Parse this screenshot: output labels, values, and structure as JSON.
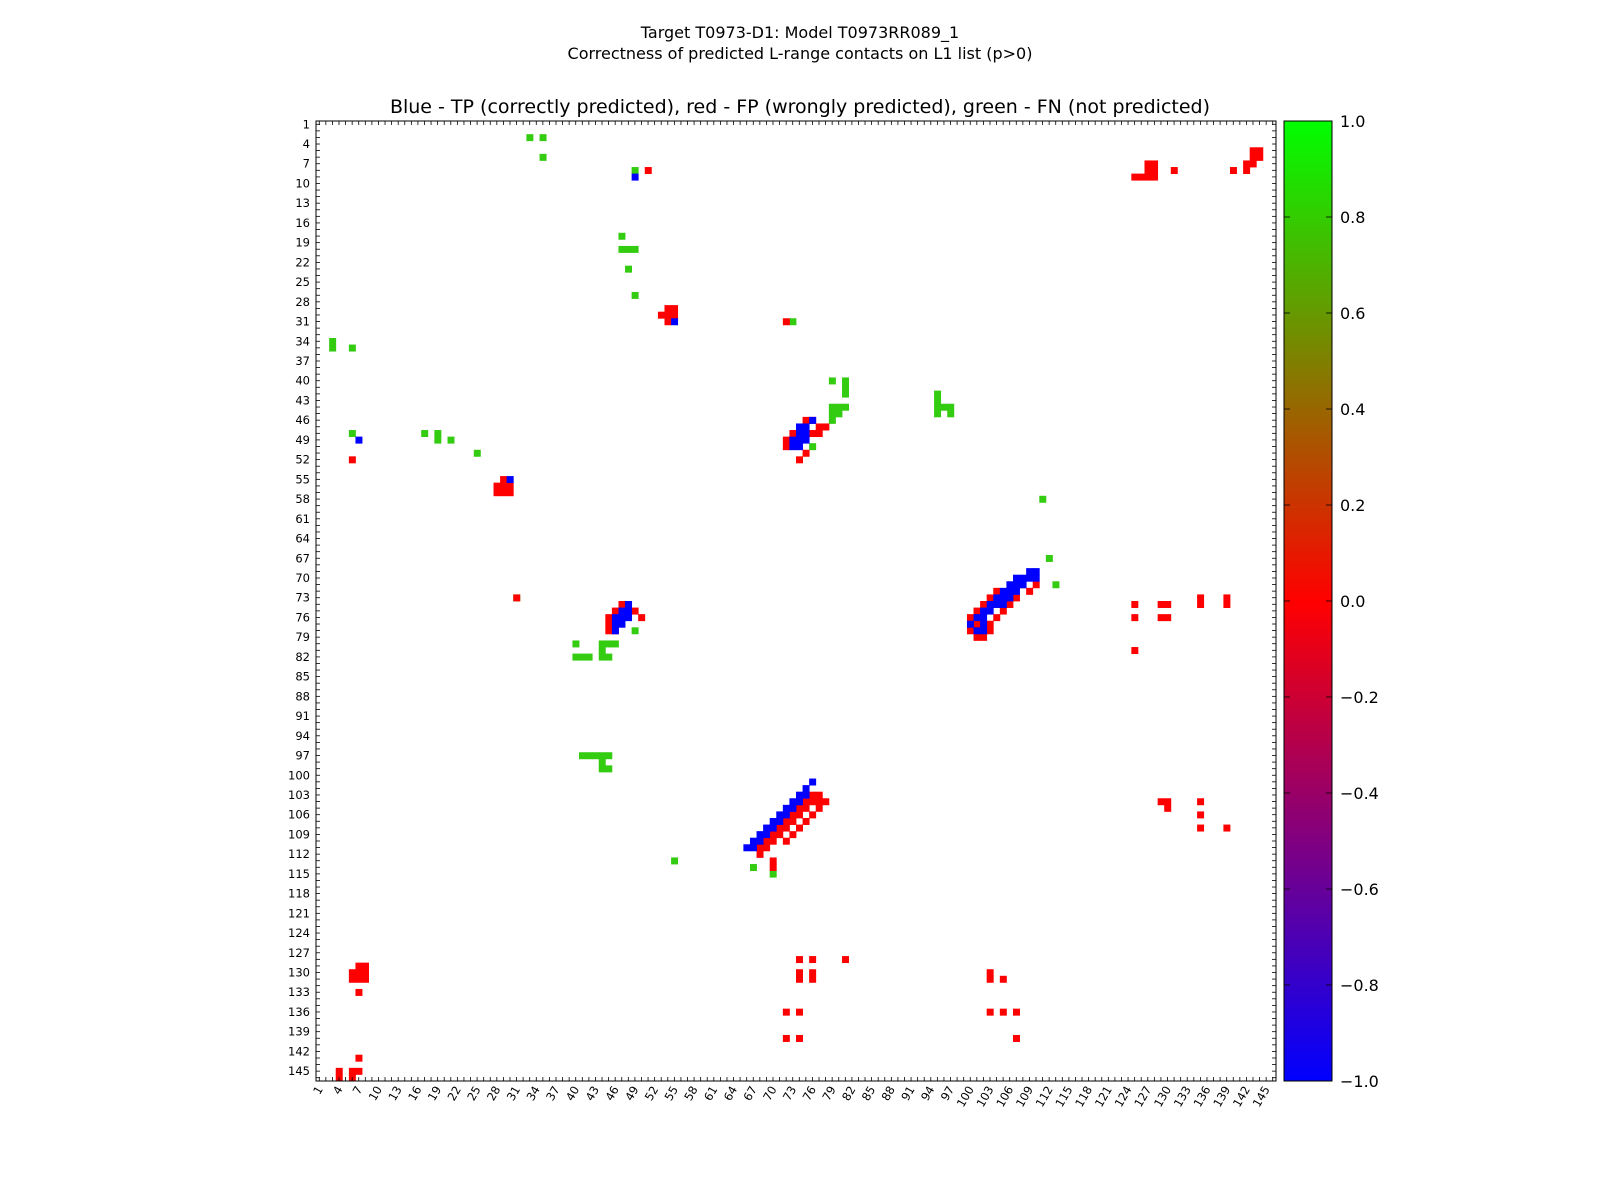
{
  "colors": {
    "tp": "#0000ff",
    "fp": "#ff0000",
    "fn": "#33cc11",
    "frame": "#000000",
    "background": "#ffffff"
  },
  "chart_data": {
    "type": "heatmap",
    "suptitle_line1": "Target T0973-D1: Model T0973RR089_1",
    "suptitle_line2": "Correctness of predicted L-range contacts on L1 list (p>0)",
    "title": "Blue - TP (correctly predicted), red - FP (wrongly predicted), green - FN (not predicted)",
    "residue_range": [
      1,
      146
    ],
    "tick_labels": [
      "1",
      "4",
      "7",
      "10",
      "13",
      "16",
      "19",
      "22",
      "25",
      "28",
      "31",
      "34",
      "37",
      "40",
      "43",
      "46",
      "49",
      "52",
      "55",
      "58",
      "61",
      "64",
      "67",
      "70",
      "73",
      "76",
      "79",
      "82",
      "85",
      "88",
      "91",
      "94",
      "97",
      "100",
      "103",
      "106",
      "109",
      "112",
      "115",
      "118",
      "121",
      "124",
      "127",
      "130",
      "133",
      "136",
      "139",
      "142",
      "145"
    ],
    "colorbar": {
      "range": [
        -1.0,
        1.0
      ],
      "tick_labels": [
        "1.0",
        "0.8",
        "0.6",
        "0.4",
        "0.2",
        "0.0",
        "−0.2",
        "−0.4",
        "−0.6",
        "−0.8",
        "−1.0"
      ],
      "stops": [
        {
          "value": 1.0,
          "color": "#00ff00"
        },
        {
          "value": 0.5,
          "color": "#7f8000"
        },
        {
          "value": 0.0,
          "color": "#ff0000"
        },
        {
          "value": -0.5,
          "color": "#800080"
        },
        {
          "value": -1.0,
          "color": "#0000ff"
        }
      ]
    },
    "cells": {
      "tp": [
        [
          9,
          49
        ],
        [
          31,
          55
        ],
        [
          49,
          7
        ],
        [
          55,
          30
        ],
        [
          46,
          76
        ],
        [
          47,
          74
        ],
        [
          47,
          75
        ],
        [
          48,
          74
        ],
        [
          48,
          75
        ],
        [
          49,
          73
        ],
        [
          49,
          74
        ],
        [
          49,
          75
        ],
        [
          50,
          73
        ],
        [
          50,
          74
        ],
        [
          74,
          48
        ],
        [
          75,
          47
        ],
        [
          75,
          48
        ],
        [
          76,
          46
        ],
        [
          76,
          47
        ],
        [
          76,
          48
        ],
        [
          77,
          46
        ],
        [
          77,
          47
        ],
        [
          78,
          46
        ],
        [
          69,
          109
        ],
        [
          69,
          110
        ],
        [
          70,
          107
        ],
        [
          70,
          108
        ],
        [
          70,
          109
        ],
        [
          70,
          110
        ],
        [
          71,
          106
        ],
        [
          71,
          107
        ],
        [
          71,
          108
        ],
        [
          72,
          105
        ],
        [
          72,
          106
        ],
        [
          72,
          107
        ],
        [
          73,
          104
        ],
        [
          73,
          105
        ],
        [
          73,
          106
        ],
        [
          74,
          103
        ],
        [
          74,
          104
        ],
        [
          74,
          105
        ],
        [
          75,
          102
        ],
        [
          75,
          103
        ],
        [
          76,
          101
        ],
        [
          76,
          102
        ],
        [
          77,
          100
        ],
        [
          77,
          102
        ],
        [
          78,
          101
        ],
        [
          78,
          102
        ],
        [
          101,
          76
        ],
        [
          102,
          75
        ],
        [
          103,
          74
        ],
        [
          103,
          75
        ],
        [
          104,
          73
        ],
        [
          104,
          74
        ],
        [
          105,
          72
        ],
        [
          105,
          73
        ],
        [
          106,
          71
        ],
        [
          106,
          72
        ],
        [
          107,
          70
        ],
        [
          107,
          71
        ],
        [
          108,
          69
        ],
        [
          108,
          70
        ],
        [
          109,
          68
        ],
        [
          109,
          69
        ],
        [
          110,
          67
        ],
        [
          110,
          68
        ],
        [
          111,
          66
        ],
        [
          111,
          67
        ]
      ],
      "fp": [
        [
          5,
          143
        ],
        [
          5,
          144
        ],
        [
          6,
          143
        ],
        [
          6,
          144
        ],
        [
          7,
          142
        ],
        [
          7,
          143
        ],
        [
          8,
          140
        ],
        [
          8,
          142
        ],
        [
          7,
          127
        ],
        [
          7,
          128
        ],
        [
          8,
          127
        ],
        [
          8,
          128
        ],
        [
          8,
          131
        ],
        [
          9,
          125
        ],
        [
          9,
          126
        ],
        [
          9,
          127
        ],
        [
          9,
          128
        ],
        [
          8,
          51
        ],
        [
          31,
          72
        ],
        [
          29,
          54
        ],
        [
          29,
          55
        ],
        [
          30,
          53
        ],
        [
          30,
          54
        ],
        [
          30,
          55
        ],
        [
          31,
          54
        ],
        [
          47,
          77
        ],
        [
          47,
          78
        ],
        [
          48,
          73
        ],
        [
          48,
          76
        ],
        [
          48,
          77
        ],
        [
          49,
          72
        ],
        [
          50,
          72
        ],
        [
          51,
          75
        ],
        [
          52,
          74
        ],
        [
          46,
          75
        ],
        [
          46,
          76
        ],
        [
          52,
          6
        ],
        [
          55,
          29
        ],
        [
          56,
          28
        ],
        [
          56,
          29
        ],
        [
          56,
          30
        ],
        [
          57,
          28
        ],
        [
          57,
          29
        ],
        [
          57,
          30
        ],
        [
          73,
          31
        ],
        [
          74,
          47
        ],
        [
          74,
          48
        ],
        [
          75,
          46
        ],
        [
          75,
          49
        ],
        [
          76,
          45
        ],
        [
          76,
          50
        ],
        [
          77,
          45
        ],
        [
          78,
          45
        ],
        [
          78,
          46
        ],
        [
          71,
          108
        ],
        [
          71,
          110
        ],
        [
          72,
          104
        ],
        [
          72,
          109
        ],
        [
          73,
          103
        ],
        [
          73,
          107
        ],
        [
          74,
          102
        ],
        [
          74,
          106
        ],
        [
          75,
          101
        ],
        [
          75,
          105
        ],
        [
          76,
          100
        ],
        [
          76,
          104
        ],
        [
          77,
          101
        ],
        [
          77,
          103
        ],
        [
          78,
          100
        ],
        [
          78,
          103
        ],
        [
          79,
          101
        ],
        [
          79,
          102
        ],
        [
          73,
          135
        ],
        [
          73,
          139
        ],
        [
          74,
          125
        ],
        [
          74,
          129
        ],
        [
          74,
          130
        ],
        [
          74,
          135
        ],
        [
          74,
          139
        ],
        [
          76,
          125
        ],
        [
          76,
          129
        ],
        [
          76,
          130
        ],
        [
          81,
          125
        ],
        [
          103,
          76
        ],
        [
          103,
          77
        ],
        [
          104,
          75
        ],
        [
          104,
          76
        ],
        [
          104,
          77
        ],
        [
          104,
          78
        ],
        [
          105,
          74
        ],
        [
          105,
          75
        ],
        [
          105,
          77
        ],
        [
          106,
          73
        ],
        [
          106,
          74
        ],
        [
          106,
          76
        ],
        [
          107,
          72
        ],
        [
          107,
          73
        ],
        [
          107,
          75
        ],
        [
          108,
          71
        ],
        [
          108,
          72
        ],
        [
          108,
          74
        ],
        [
          109,
          70
        ],
        [
          109,
          71
        ],
        [
          109,
          73
        ],
        [
          110,
          69
        ],
        [
          110,
          70
        ],
        [
          110,
          72
        ],
        [
          111,
          68
        ],
        [
          111,
          69
        ],
        [
          112,
          68
        ],
        [
          113,
          70
        ],
        [
          114,
          70
        ],
        [
          104,
          129
        ],
        [
          104,
          130
        ],
        [
          104,
          135
        ],
        [
          105,
          130
        ],
        [
          106,
          135
        ],
        [
          108,
          135
        ],
        [
          108,
          139
        ],
        [
          128,
          74
        ],
        [
          128,
          76
        ],
        [
          128,
          81
        ],
        [
          130,
          74
        ],
        [
          130,
          76
        ],
        [
          131,
          74
        ],
        [
          131,
          76
        ],
        [
          136,
          72
        ],
        [
          136,
          74
        ],
        [
          140,
          72
        ],
        [
          140,
          74
        ],
        [
          129,
          7
        ],
        [
          129,
          8
        ],
        [
          130,
          6
        ],
        [
          130,
          7
        ],
        [
          130,
          8
        ],
        [
          131,
          6
        ],
        [
          131,
          7
        ],
        [
          131,
          8
        ],
        [
          133,
          7
        ],
        [
          130,
          103
        ],
        [
          131,
          103
        ],
        [
          131,
          105
        ],
        [
          136,
          103
        ],
        [
          136,
          105
        ],
        [
          136,
          107
        ],
        [
          140,
          107
        ],
        [
          143,
          7
        ],
        [
          145,
          4
        ],
        [
          145,
          6
        ],
        [
          145,
          7
        ],
        [
          146,
          4
        ],
        [
          146,
          6
        ]
      ],
      "fn": [
        [
          3,
          33
        ],
        [
          3,
          35
        ],
        [
          6,
          35
        ],
        [
          8,
          49
        ],
        [
          18,
          47
        ],
        [
          20,
          47
        ],
        [
          20,
          48
        ],
        [
          20,
          49
        ],
        [
          23,
          48
        ],
        [
          27,
          49
        ],
        [
          31,
          73
        ],
        [
          34,
          3
        ],
        [
          35,
          3
        ],
        [
          35,
          6
        ],
        [
          40,
          79
        ],
        [
          40,
          81
        ],
        [
          41,
          81
        ],
        [
          42,
          81
        ],
        [
          42,
          95
        ],
        [
          43,
          95
        ],
        [
          44,
          95
        ],
        [
          44,
          96
        ],
        [
          44,
          97
        ],
        [
          44,
          79
        ],
        [
          44,
          80
        ],
        [
          44,
          81
        ],
        [
          45,
          79
        ],
        [
          45,
          80
        ],
        [
          45,
          95
        ],
        [
          45,
          97
        ],
        [
          46,
          79
        ],
        [
          47,
          78
        ],
        [
          50,
          76
        ],
        [
          48,
          6
        ],
        [
          48,
          17
        ],
        [
          48,
          19
        ],
        [
          49,
          19
        ],
        [
          49,
          21
        ],
        [
          51,
          25
        ],
        [
          58,
          111
        ],
        [
          67,
          112
        ],
        [
          71,
          113
        ],
        [
          73,
          31
        ],
        [
          78,
          49
        ],
        [
          80,
          40
        ],
        [
          80,
          44
        ],
        [
          80,
          45
        ],
        [
          80,
          46
        ],
        [
          81,
          44
        ],
        [
          82,
          40
        ],
        [
          82,
          41
        ],
        [
          82,
          42
        ],
        [
          82,
          44
        ],
        [
          82,
          45
        ],
        [
          97,
          41
        ],
        [
          97,
          42
        ],
        [
          97,
          43
        ],
        [
          97,
          44
        ],
        [
          97,
          45
        ],
        [
          98,
          44
        ],
        [
          99,
          44
        ],
        [
          99,
          45
        ],
        [
          113,
          55
        ],
        [
          114,
          67
        ],
        [
          115,
          70
        ]
      ]
    }
  }
}
